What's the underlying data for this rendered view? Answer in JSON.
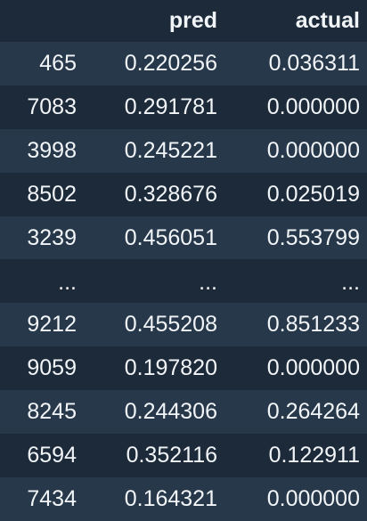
{
  "table": {
    "columns": [
      "",
      "pred",
      "actual"
    ],
    "rows": [
      [
        "465",
        "0.220256",
        "0.036311"
      ],
      [
        "7083",
        "0.291781",
        "0.000000"
      ],
      [
        "3998",
        "0.245221",
        "0.000000"
      ],
      [
        "8502",
        "0.328676",
        "0.025019"
      ],
      [
        "3239",
        "0.456051",
        "0.553799"
      ],
      [
        "...",
        "...",
        "..."
      ],
      [
        "9212",
        "0.455208",
        "0.851233"
      ],
      [
        "9059",
        "0.197820",
        "0.000000"
      ],
      [
        "8245",
        "0.244306",
        "0.264264"
      ],
      [
        "6594",
        "0.352116",
        "0.122911"
      ],
      [
        "7434",
        "0.164321",
        "0.000000"
      ]
    ]
  }
}
